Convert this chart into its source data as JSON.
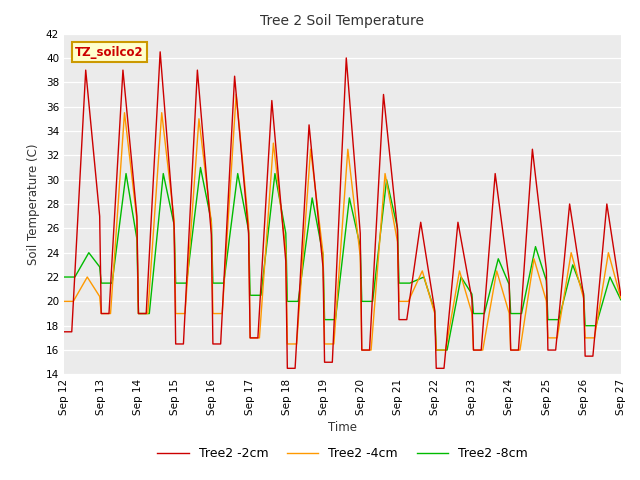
{
  "title": "Tree 2 Soil Temperature",
  "xlabel": "Time",
  "ylabel": "Soil Temperature (C)",
  "ylim": [
    14,
    42
  ],
  "yticks": [
    14,
    16,
    18,
    20,
    22,
    24,
    26,
    28,
    30,
    32,
    34,
    36,
    38,
    40,
    42
  ],
  "xtick_labels": [
    "Sep 12",
    "Sep 13",
    "Sep 14",
    "Sep 15",
    "Sep 16",
    "Sep 17",
    "Sep 18",
    "Sep 19",
    "Sep 20",
    "Sep 21",
    "Sep 22",
    "Sep 23",
    "Sep 24",
    "Sep 25",
    "Sep 26",
    "Sep 27"
  ],
  "annotation_text": "TZ_soilco2",
  "legend_labels": [
    "Tree2 -2cm",
    "Tree2 -4cm",
    "Tree2 -8cm"
  ],
  "line_colors": [
    "#cc0000",
    "#ff9900",
    "#00bb00"
  ],
  "line_width": 1.0,
  "fig_bg_color": "#ffffff",
  "plot_bg_color": "#ebebeb",
  "grid_color": "#ffffff",
  "n_days": 15,
  "hours_per_day": 24,
  "peaks_2cm": [
    39.0,
    39.0,
    40.5,
    39.0,
    38.5,
    36.5,
    34.5,
    40.0,
    37.0,
    26.5,
    26.5,
    30.5,
    32.5,
    28.0,
    28.0
  ],
  "troughs_2cm": [
    17.5,
    19.0,
    19.0,
    16.5,
    16.5,
    17.0,
    14.5,
    15.0,
    16.0,
    18.5,
    14.5,
    16.0,
    16.0,
    16.0,
    15.5
  ],
  "peaks_4cm": [
    22.0,
    35.5,
    35.5,
    35.0,
    37.0,
    33.0,
    32.5,
    32.5,
    30.5,
    22.5,
    22.5,
    22.5,
    23.5,
    24.0,
    24.0
  ],
  "troughs_4cm": [
    20.0,
    19.0,
    19.0,
    19.0,
    19.0,
    17.0,
    16.5,
    16.5,
    16.0,
    20.0,
    16.0,
    16.0,
    16.0,
    17.0,
    17.0
  ],
  "peaks_8cm": [
    24.0,
    30.5,
    30.5,
    31.0,
    30.5,
    30.5,
    28.5,
    28.5,
    30.0,
    22.0,
    22.0,
    23.5,
    24.5,
    23.0,
    22.0
  ],
  "troughs_8cm": [
    22.0,
    21.5,
    19.0,
    21.5,
    21.5,
    20.5,
    20.0,
    18.5,
    20.0,
    21.5,
    16.0,
    19.0,
    19.0,
    18.5,
    18.0
  ]
}
